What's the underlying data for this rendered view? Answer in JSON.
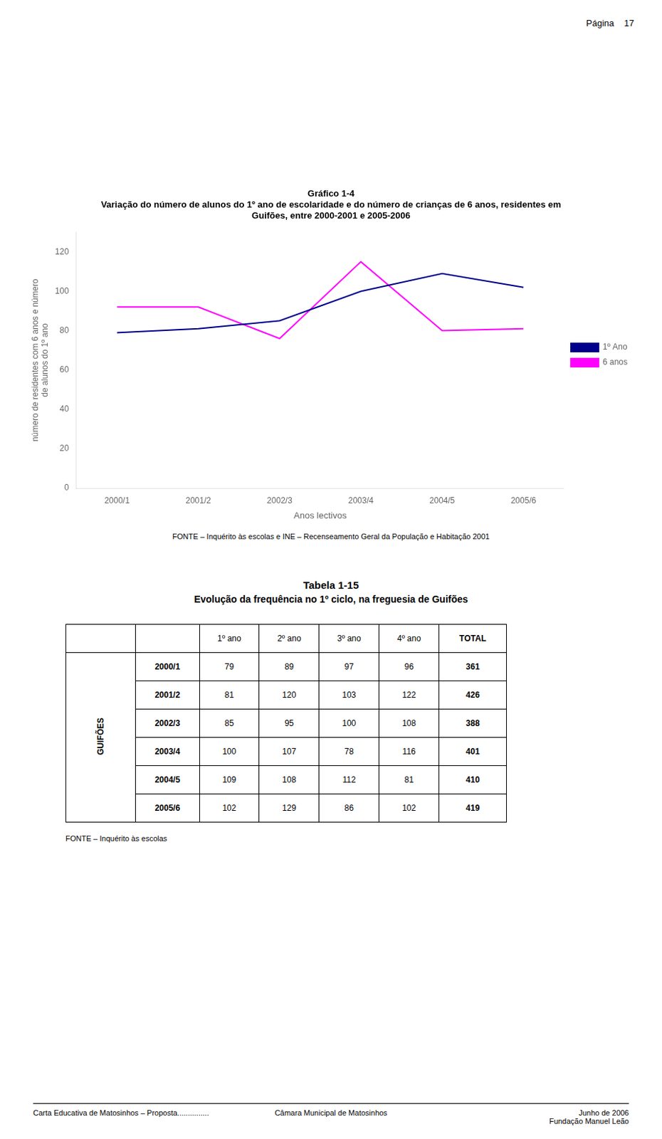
{
  "page_title": "Página    17",
  "chart_data": {
    "type": "line",
    "title": [
      "Gráfico 1-4",
      "Variação do número de alunos do 1º ano de escolaridade e do número de crianças de 6 anos, residentes em",
      "Guifões, entre 2000-2001 e 2005-2006"
    ],
    "x_label": "Anos lectivos",
    "y_label": [
      "número de residentes com 6 anos e número",
      "de alunos do 1º ano"
    ],
    "categories": [
      "2000/1",
      "2001/2",
      "2002/3",
      "2003/4",
      "2004/5",
      "2005/6"
    ],
    "series": [
      {
        "name": "1º Ano",
        "color": "#00008B",
        "values": [
          79,
          81,
          85,
          100,
          109,
          102
        ]
      },
      {
        "name": "6 anos",
        "color": "#FF00FF",
        "values": [
          92,
          92,
          76,
          115,
          80,
          81
        ]
      }
    ],
    "ylim": [
      0,
      130
    ],
    "yticks": [
      0,
      20,
      40,
      60,
      80,
      100,
      120
    ],
    "grid": false,
    "legend": "right",
    "marker": "none"
  },
  "chart_source": "FONTE – Inquérito às escolas e INE – Recenseamento Geral da População e Habitação 2001",
  "table": {
    "title": [
      "Tabela 1-15",
      "Evolução da frequência no 1º ciclo, na freguesia de Guifões"
    ],
    "group_label": "GUIFÕES",
    "columns": [
      "1º ano",
      "2º ano",
      "3º ano",
      "4º ano",
      "TOTAL"
    ],
    "rows": [
      [
        "2000/1",
        79,
        89,
        97,
        96,
        361
      ],
      [
        "2001/2",
        81,
        120,
        103,
        122,
        426
      ],
      [
        "2002/3",
        85,
        95,
        100,
        108,
        388
      ],
      [
        "2003/4",
        100,
        107,
        78,
        116,
        401
      ],
      [
        "2004/5",
        109,
        108,
        112,
        81,
        410
      ],
      [
        "2005/6",
        102,
        129,
        86,
        102,
        419
      ]
    ]
  },
  "table_source": "FONTE – Inquérito às escolas",
  "footer": {
    "left": "Carta Educativa de Matosinhos – Proposta...............",
    "center": "Câmara Municipal de Matosinhos",
    "right": [
      "Junho de 2006",
      "Fundação Manuel Leão"
    ]
  }
}
